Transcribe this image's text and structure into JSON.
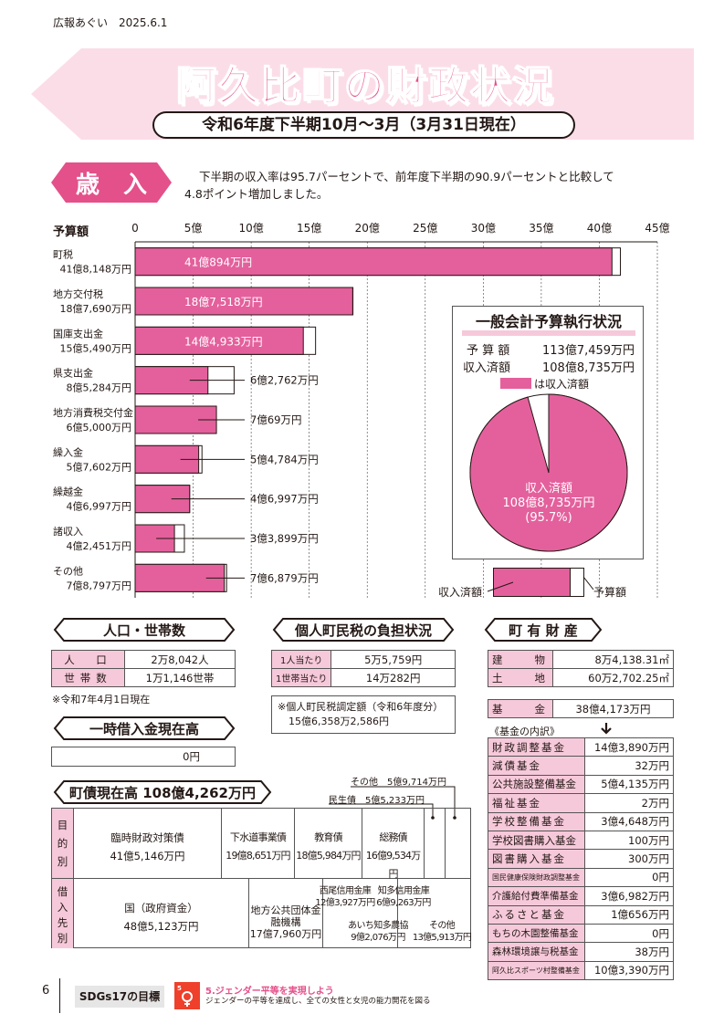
{
  "header": {
    "publication": "広報あぐい　2025.6.1"
  },
  "title": "阿久比町の財政状況",
  "subtitle": "令和6年度下半期10月～3月（3月31日現在）",
  "revenue": {
    "label": "歳　入",
    "description_line1": "下半期の収入率は95.7パーセントで、前年度下半期の90.9パーセントと比較して",
    "description_line2": "4.8ポイント増加しました。"
  },
  "chart_data": {
    "type": "bar",
    "ylabel": "予算額",
    "xlim": [
      0,
      45
    ],
    "ticks": [
      "0",
      "5億",
      "10億",
      "15億",
      "20億",
      "25億",
      "30億",
      "35億",
      "40億",
      "45億"
    ],
    "categories": [
      {
        "name": "町税",
        "budget": "41億8,148万円",
        "budget_value": 41.8148,
        "received": "41億894万円",
        "received_value": 41.0894,
        "label_inside": true
      },
      {
        "name": "地方交付税",
        "budget": "18億7,690万円",
        "budget_value": 18.769,
        "received": "18億7,518万円",
        "received_value": 18.7518,
        "label_inside": true
      },
      {
        "name": "国庫支出金",
        "budget": "15億5,490万円",
        "budget_value": 15.549,
        "received": "14億4,933万円",
        "received_value": 14.4933,
        "label_inside": true
      },
      {
        "name": "県支出金",
        "budget": "8億5,284万円",
        "budget_value": 8.5284,
        "received": "6億2,762万円",
        "received_value": 6.2762,
        "label_inside": false
      },
      {
        "name": "地方消費税交付金",
        "budget": "6億5,000万円",
        "budget_value": 6.5,
        "received": "7億69万円",
        "received_value": 7.0069,
        "label_inside": false
      },
      {
        "name": "繰入金",
        "budget": "5億7,602万円",
        "budget_value": 5.7602,
        "received": "5億4,784万円",
        "received_value": 5.4784,
        "label_inside": false
      },
      {
        "name": "繰越金",
        "budget": "4億6,997万円",
        "budget_value": 4.6997,
        "received": "4億6,997万円",
        "received_value": 4.6997,
        "label_inside": false
      },
      {
        "name": "諸収入",
        "budget": "4億2,451万円",
        "budget_value": 4.2451,
        "received": "3億3,899万円",
        "received_value": 3.3899,
        "label_inside": false
      },
      {
        "name": "その他",
        "budget": "7億8,797万円",
        "budget_value": 7.8797,
        "received": "7億6,879万円",
        "received_value": 7.6879,
        "label_inside": false
      }
    ]
  },
  "general_account": {
    "title": "一般会計予算執行状況",
    "budget_label": "予 算 額",
    "budget_value": "113億7,459万円",
    "received_label": "収入済額",
    "received_value": "108億8,735万円",
    "legend": "は収入済額",
    "pie_label1": "収入済額",
    "pie_label2": "108億8,735万円",
    "pie_label3": "(95.7%)",
    "pie_fraction": 0.957,
    "key_received": "収入済額",
    "key_budget": "予算額"
  },
  "population": {
    "title": "人口・世帯数",
    "rows": [
      {
        "label": "人　口",
        "value": "2万8,042人"
      },
      {
        "label": "世帯数",
        "value": "1万1,146世帯"
      }
    ],
    "note": "※令和7年4月1日現在"
  },
  "temp_loan": {
    "title": "一時借入金現在高",
    "value": "0円"
  },
  "tax_burden": {
    "title": "個人町民税の負担状況",
    "rows": [
      {
        "label": "1人当たり",
        "value": "5万5,759円"
      },
      {
        "label": "1世帯当たり",
        "value": "14万282円"
      }
    ],
    "note1": "※個人町民税調定額（令和6年度分）",
    "note2": "15億6,358万2,586円"
  },
  "property": {
    "title": "町 有 財 産",
    "rows": [
      {
        "label": "建　　物",
        "value": "8万4,138.31㎡"
      },
      {
        "label": "土　　地",
        "value": "60万2,702.25㎡"
      }
    ],
    "fund_label": "基　　金",
    "fund_value": "38億4,173万円",
    "fund_breakdown": "《基金の内訳》",
    "arrow": "arrow-down-icon",
    "funds": [
      {
        "label": "財政調整基金",
        "value": "14億3,890万円"
      },
      {
        "label": "減債基金",
        "value": "32万円"
      },
      {
        "label": "公共施設整備基金",
        "value": "5億4,135万円"
      },
      {
        "label": "福祉基金",
        "value": "2万円"
      },
      {
        "label": "学校整備基金",
        "value": "3億4,648万円"
      },
      {
        "label": "学校図書購入基金",
        "value": "100万円"
      },
      {
        "label": "図書購入基金",
        "value": "300万円"
      },
      {
        "label": "国民健康保険財政調整基金",
        "value": "0円"
      },
      {
        "label": "介護給付費準備基金",
        "value": "3億6,982万円"
      },
      {
        "label": "ふるさと基金",
        "value": "1億656万円"
      },
      {
        "label": "もちの木園整備基金",
        "value": "0円"
      },
      {
        "label": "森林環境譲与税基金",
        "value": "38万円"
      },
      {
        "label": "阿久比スポーツ村整備基金",
        "value": "10億3,390万円"
      }
    ]
  },
  "debt": {
    "title": "町債現在高 108億4,262万円",
    "purpose_label": "目的別",
    "lender_label": "借入先別",
    "other_top": "その他　5億9,714万円",
    "minsei": "民生債　5億5,233万円",
    "purpose": [
      {
        "name": "臨時財政対策債",
        "value": "41億5,146万円"
      },
      {
        "name": "下水道事業債",
        "value": "19億8,651万円"
      },
      {
        "name": "教育債",
        "value": "18億5,984万円"
      },
      {
        "name": "総務債",
        "value": "16億9,534万円"
      }
    ],
    "lenders": [
      {
        "name": "国（政府資金）",
        "value": "48億5,123万円"
      },
      {
        "name": "地方公共団体金融機構",
        "value": "17億7,960万円"
      },
      {
        "name": "西尾信用金庫",
        "value": "12億3,927万円"
      },
      {
        "name": "あいち知多農協",
        "value": "9億2,076万円"
      },
      {
        "name": "知多信用金庫",
        "value": "6億9,263万円"
      },
      {
        "name": "その他",
        "value": "13億5,913万円"
      }
    ]
  },
  "footer": {
    "page": "6",
    "sdgs": "SDGs17の目標",
    "goal_title": "5.ジェンダー平等を実現しよう",
    "goal_desc": "ジェンダーの平等を達成し、全ての女性と女児の能力開花を図る",
    "icon": "gender-equality-icon"
  },
  "colors": {
    "accent": "#e4508a",
    "light": "#f6c9da",
    "bar": "#e4609c"
  }
}
